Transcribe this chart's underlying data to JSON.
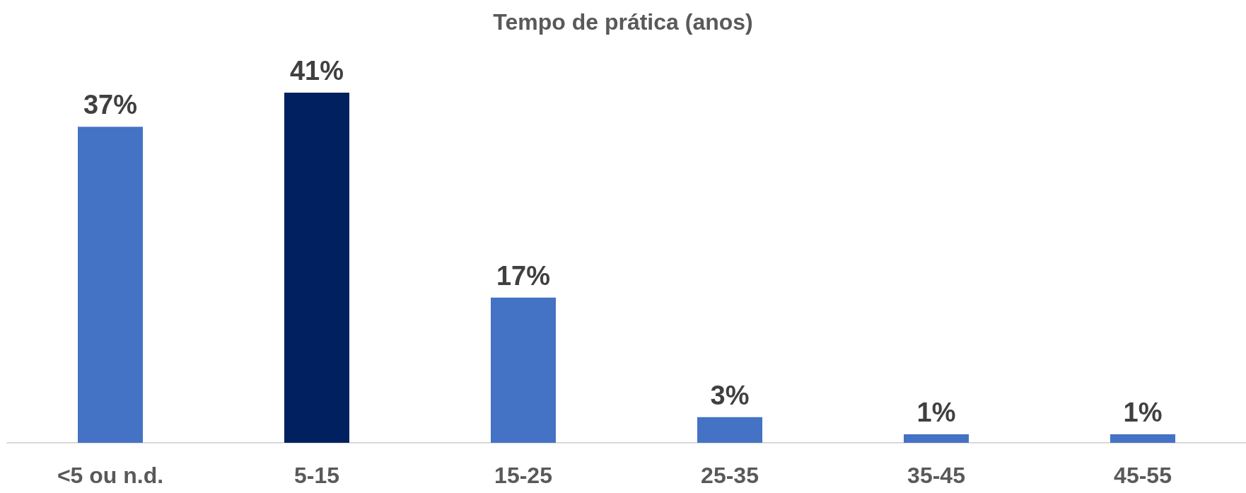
{
  "chart_data": {
    "type": "bar",
    "title": "Tempo de prática (anos)",
    "categories": [
      "<5 ou n.d.",
      "5-15",
      "15-25",
      "25-35",
      "35-45",
      "45-55"
    ],
    "values": [
      37,
      41,
      17,
      3,
      1,
      1
    ],
    "value_labels": [
      "37%",
      "41%",
      "17%",
      "3%",
      "1%",
      "1%"
    ],
    "colors": [
      "#4472c4",
      "#002060",
      "#4472c4",
      "#4472c4",
      "#4472c4",
      "#4472c4"
    ],
    "grid": false
  }
}
